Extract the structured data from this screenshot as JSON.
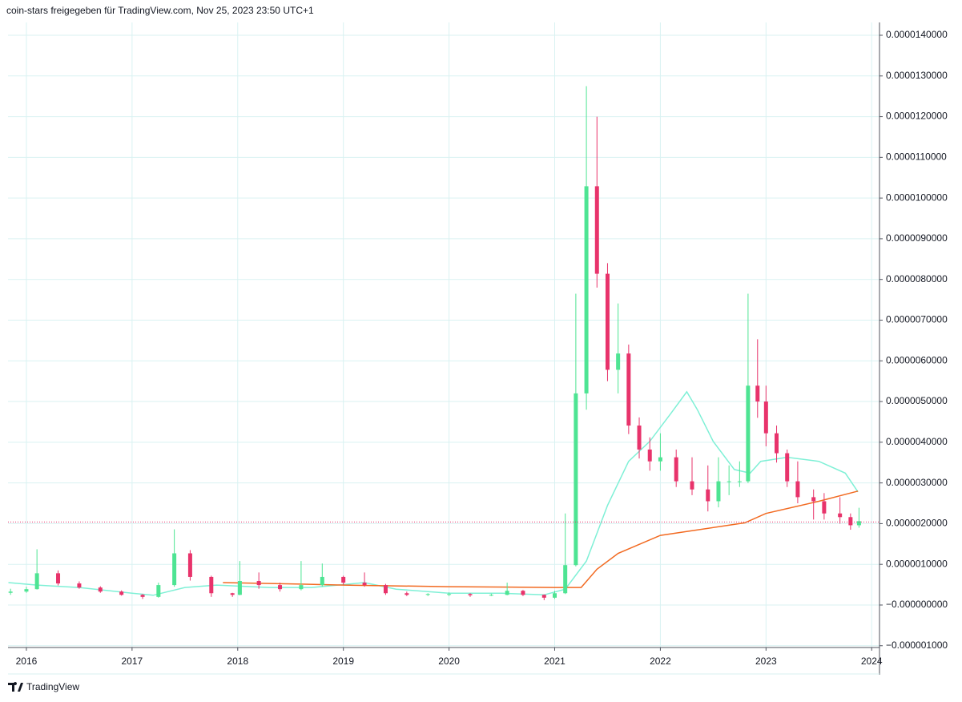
{
  "header": "coin-stars freigegeben für TradingView.com, Nov 25, 2023 23:50 UTC+1",
  "footer": "TradingView",
  "chart_data": {
    "type": "candlestick",
    "x": [
      2015.85,
      2016.0,
      2016.1,
      2016.3,
      2016.5,
      2016.7,
      2016.9,
      2017.1,
      2017.25,
      2017.4,
      2017.55,
      2017.75,
      2017.95,
      2018.02,
      2018.2,
      2018.4,
      2018.6,
      2018.8,
      2019.0,
      2019.2,
      2019.4,
      2019.6,
      2019.8,
      2020.0,
      2020.2,
      2020.4,
      2020.55,
      2020.7,
      2020.9,
      2021.0,
      2021.1,
      2021.2,
      2021.3,
      2021.4,
      2021.5,
      2021.6,
      2021.7,
      2021.8,
      2021.9,
      2022.0,
      2022.15,
      2022.3,
      2022.45,
      2022.55,
      2022.65,
      2022.75,
      2022.83,
      2022.92,
      2023.0,
      2023.1,
      2023.2,
      2023.3,
      2023.45,
      2023.55,
      2023.7,
      2023.8,
      2023.88
    ],
    "open": [
      3e-07,
      3.3e-07,
      3.9e-07,
      7.8e-07,
      5.3e-07,
      4.3e-07,
      3.3e-07,
      2.5e-07,
      2e-07,
      4.9e-07,
      1.27e-06,
      6.9e-07,
      2.9e-07,
      2.5e-07,
      5.9e-07,
      4.9e-07,
      3.9e-07,
      4.9e-07,
      6.9e-07,
      5.5e-07,
      4.9e-07,
      2.9e-07,
      2.5e-07,
      2.7e-07,
      2.7e-07,
      2.4e-07,
      2.5e-07,
      3.5e-07,
      2.5e-07,
      1.8e-07,
      2.9e-07,
      9.8e-07,
      5.2e-06,
      1.029e-05,
      8.14e-06,
      5.78e-06,
      6.18e-06,
      4.41e-06,
      3.82e-06,
      3.53e-06,
      3.63e-06,
      3.04e-06,
      2.84e-06,
      2.55e-06,
      3.04e-06,
      3.04e-06,
      3.04e-06,
      5.39e-06,
      5e-06,
      4.22e-06,
      3.73e-06,
      3.04e-06,
      2.65e-06,
      2.55e-06,
      2.25e-06,
      2.16e-06,
      1.96e-06
    ],
    "high": [
      4e-07,
      4.5e-07,
      1.37e-06,
      8.5e-07,
      5.8e-07,
      4.6e-07,
      3.6e-07,
      2.7e-07,
      5.5e-07,
      1.86e-06,
      1.35e-06,
      7.2e-07,
      3e-07,
      1.08e-06,
      8e-07,
      5.5e-07,
      1.08e-06,
      1.02e-06,
      7.2e-07,
      8e-07,
      5.2e-07,
      3.3e-07,
      2.9e-07,
      3.1e-07,
      2.9e-07,
      2.8e-07,
      5.5e-07,
      3.7e-07,
      2.6e-07,
      3.5e-07,
      2.25e-06,
      7.65e-06,
      1.275e-05,
      1.2e-05,
      8.4e-06,
      7.41e-06,
      6.4e-06,
      4.61e-06,
      4.12e-06,
      4.22e-06,
      3.82e-06,
      3.63e-06,
      3.43e-06,
      3.63e-06,
      3.43e-06,
      3.53e-06,
      7.65e-06,
      6.53e-06,
      5.39e-06,
      4.41e-06,
      3.82e-06,
      3.53e-06,
      2.84e-06,
      2.75e-06,
      2.65e-06,
      2.25e-06,
      2.39e-06
    ],
    "low": [
      2.5e-07,
      3e-07,
      3.8e-07,
      4.8e-07,
      4e-07,
      3e-07,
      2.3e-07,
      1.5e-07,
      1.8e-07,
      4.5e-07,
      6e-07,
      2e-07,
      2e-07,
      2.4e-07,
      4e-07,
      3.3e-07,
      3.6e-07,
      4.5e-07,
      5e-07,
      4.5e-07,
      2.5e-07,
      2.2e-07,
      2.2e-07,
      2.2e-07,
      2e-07,
      2.2e-07,
      2.4e-07,
      2.2e-07,
      1.2e-07,
      1.5e-07,
      2.7e-07,
      9.5e-07,
      4.8e-06,
      7.8e-06,
      5.5e-06,
      5.2e-06,
      4.2e-06,
      3.6e-06,
      3.3e-06,
      3.3e-06,
      2.9e-06,
      2.7e-06,
      2.3e-06,
      2.4e-06,
      2.7e-06,
      2.9e-06,
      3e-06,
      4.6e-06,
      3.9e-06,
      3.5e-06,
      2.9e-06,
      2.5e-06,
      2.1e-06,
      2.1e-06,
      2e-06,
      1.85e-06,
      1.9e-06
    ],
    "close": [
      3.3e-07,
      3.9e-07,
      7.8e-07,
      5.3e-07,
      4.3e-07,
      3.3e-07,
      2.5e-07,
      2e-07,
      4.9e-07,
      1.27e-06,
      6.9e-07,
      2.9e-07,
      2.5e-07,
      5.9e-07,
      4.9e-07,
      3.9e-07,
      4.9e-07,
      6.9e-07,
      5.5e-07,
      4.9e-07,
      2.9e-07,
      2.5e-07,
      2.7e-07,
      2.7e-07,
      2.4e-07,
      2.5e-07,
      3.5e-07,
      2.5e-07,
      1.8e-07,
      2.9e-07,
      9.8e-07,
      5.2e-06,
      1.029e-05,
      8.14e-06,
      5.78e-06,
      6.18e-06,
      4.41e-06,
      3.82e-06,
      3.53e-06,
      3.63e-06,
      3.04e-06,
      2.84e-06,
      2.55e-06,
      3.04e-06,
      3.04e-06,
      3.04e-06,
      5.39e-06,
      5e-06,
      4.22e-06,
      3.73e-06,
      3.04e-06,
      2.65e-06,
      2.55e-06,
      2.25e-06,
      2.16e-06,
      1.96e-06,
      2.06e-06
    ],
    "up_color": "#4ee493",
    "down_color": "#e8336b",
    "lines": [
      {
        "color": "#7ff0d6",
        "x": [
          2015.83,
          2016.1,
          2016.5,
          2017.0,
          2017.2,
          2017.5,
          2017.8,
          2018.3,
          2018.7,
          2019.2,
          2019.5,
          2020.0,
          2020.5,
          2020.9,
          2021.1,
          2021.3,
          2021.5,
          2021.7,
          2021.9,
          2022.1,
          2022.25,
          2022.35,
          2022.5,
          2022.7,
          2022.85,
          2022.95,
          2023.2,
          2023.5,
          2023.75,
          2023.87
        ],
        "values": [
          5.5e-07,
          4.9e-07,
          4.3e-07,
          2.9e-07,
          2.4e-07,
          4.3e-07,
          4.9e-07,
          4.3e-07,
          4.3e-07,
          5.5e-07,
          3.9e-07,
          2.9e-07,
          2.9e-07,
          2.5e-07,
          3.9e-07,
          1.08e-06,
          2.45e-06,
          3.53e-06,
          4.02e-06,
          4.71e-06,
          5.24e-06,
          4.8e-06,
          4.02e-06,
          3.33e-06,
          3.24e-06,
          3.53e-06,
          3.63e-06,
          3.53e-06,
          3.24e-06,
          2.78e-06
        ]
      },
      {
        "color": "#f26a21",
        "x": [
          2017.86,
          2018.5,
          2019.0,
          2020.0,
          2021.0,
          2021.25,
          2021.4,
          2021.6,
          2022.0,
          2022.8,
          2023.0,
          2023.5,
          2023.87
        ],
        "values": [
          5.5e-07,
          5.2e-07,
          4.9e-07,
          4.5e-07,
          4.3e-07,
          4.3e-07,
          8.8e-07,
          1.27e-06,
          1.71e-06,
          2.02e-06,
          2.25e-06,
          2.55e-06,
          2.8e-06
        ]
      }
    ],
    "price_line": {
      "value": 2.04e-06,
      "color": "#e8336b"
    },
    "xlim": [
      2015.826,
      2024.074
    ],
    "xticks": [
      2016,
      2017,
      2018,
      2019,
      2020,
      2021,
      2022,
      2023,
      2024
    ],
    "ylim": [
      -1.044e-06,
      1.4315e-05
    ],
    "yticks": [
      {
        "value": -1e-06,
        "label": "−0.000001000"
      },
      {
        "value": 0,
        "label": "−0.000000000"
      },
      {
        "value": 1e-06,
        "label": "0.0000010000"
      },
      {
        "value": 2e-06,
        "label": "0.0000020000"
      },
      {
        "value": 3e-06,
        "label": "0.0000030000"
      },
      {
        "value": 4e-06,
        "label": "0.0000040000"
      },
      {
        "value": 5e-06,
        "label": "0.0000050000"
      },
      {
        "value": 6e-06,
        "label": "0.0000060000"
      },
      {
        "value": 7e-06,
        "label": "0.0000070000"
      },
      {
        "value": 8e-06,
        "label": "0.0000080000"
      },
      {
        "value": 9e-06,
        "label": "0.0000090000"
      },
      {
        "value": 1e-05,
        "label": "0.0000100000"
      },
      {
        "value": 1.1e-05,
        "label": "0.0000110000"
      },
      {
        "value": 1.2e-05,
        "label": "0.0000120000"
      },
      {
        "value": 1.3e-05,
        "label": "0.0000130000"
      },
      {
        "value": 1.4e-05,
        "label": "0.0000140000"
      }
    ],
    "grid": true
  }
}
